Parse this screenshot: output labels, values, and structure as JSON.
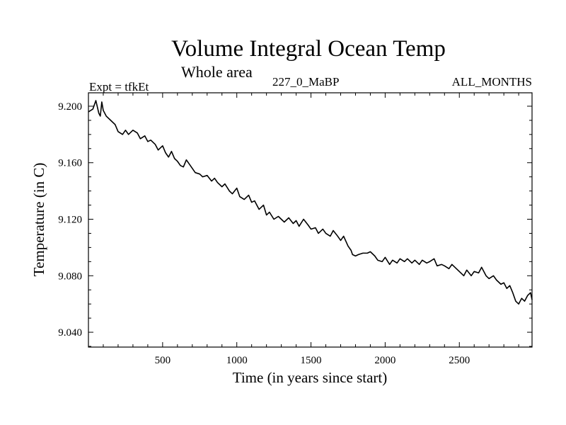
{
  "chart_data": {
    "type": "line",
    "title": "Volume Integral Ocean Temp",
    "subtitle": "Whole area",
    "annotations": {
      "left": "Expt = tfkEt",
      "center": "227_0_MaBP",
      "right": "ALL_MONTHS"
    },
    "xlabel": "Time (in years since start)",
    "ylabel": "Temperature (in C)",
    "xlim": [
      0,
      2990
    ],
    "ylim": [
      9.0295,
      9.2095
    ],
    "xticks": [
      500,
      1000,
      1500,
      2000,
      2500
    ],
    "xtick_labels": [
      "500",
      "1000",
      "1500",
      "2000",
      "2500"
    ],
    "yticks": [
      9.04,
      9.08,
      9.12,
      9.16,
      9.2
    ],
    "ytick_labels": [
      "9.040",
      "9.080",
      "9.120",
      "9.160",
      "9.200"
    ],
    "grid": false,
    "legend": "none",
    "line_color": "#000000",
    "series": [
      {
        "x": [
          0,
          30,
          50,
          70,
          80,
          90,
          100,
          120,
          150,
          180,
          200,
          230,
          250,
          270,
          300,
          330,
          350,
          380,
          400,
          420,
          450,
          470,
          500,
          520,
          540,
          560,
          580,
          600,
          620,
          640,
          660,
          680,
          700,
          720,
          750,
          770,
          800,
          830,
          850,
          870,
          900,
          920,
          950,
          970,
          1000,
          1020,
          1050,
          1080,
          1100,
          1120,
          1150,
          1180,
          1200,
          1220,
          1250,
          1280,
          1300,
          1320,
          1350,
          1380,
          1400,
          1420,
          1450,
          1480,
          1500,
          1530,
          1550,
          1580,
          1600,
          1630,
          1650,
          1680,
          1700,
          1720,
          1750,
          1770,
          1780,
          1800,
          1820,
          1850,
          1880,
          1900,
          1930,
          1950,
          1980,
          2000,
          2030,
          2050,
          2080,
          2100,
          2130,
          2150,
          2180,
          2200,
          2230,
          2250,
          2280,
          2300,
          2330,
          2350,
          2380,
          2400,
          2430,
          2450,
          2480,
          2500,
          2530,
          2550,
          2580,
          2600,
          2630,
          2650,
          2680,
          2700,
          2730,
          2750,
          2780,
          2800,
          2820,
          2840,
          2860,
          2880,
          2900,
          2920,
          2940,
          2960,
          2980,
          2990
        ],
        "y": [
          9.196,
          9.198,
          9.204,
          9.195,
          9.193,
          9.203,
          9.197,
          9.193,
          9.19,
          9.187,
          9.182,
          9.18,
          9.183,
          9.18,
          9.183,
          9.181,
          9.177,
          9.179,
          9.175,
          9.176,
          9.173,
          9.169,
          9.172,
          9.167,
          9.164,
          9.168,
          9.163,
          9.161,
          9.158,
          9.157,
          9.162,
          9.159,
          9.156,
          9.153,
          9.152,
          9.15,
          9.151,
          9.147,
          9.149,
          9.146,
          9.143,
          9.145,
          9.14,
          9.138,
          9.142,
          9.136,
          9.134,
          9.137,
          9.132,
          9.133,
          9.127,
          9.13,
          9.123,
          9.125,
          9.12,
          9.122,
          9.12,
          9.118,
          9.121,
          9.117,
          9.119,
          9.115,
          9.12,
          9.116,
          9.113,
          9.114,
          9.11,
          9.113,
          9.11,
          9.108,
          9.112,
          9.108,
          9.105,
          9.108,
          9.101,
          9.098,
          9.095,
          9.094,
          9.095,
          9.096,
          9.096,
          9.097,
          9.094,
          9.091,
          9.09,
          9.093,
          9.088,
          9.091,
          9.089,
          9.092,
          9.09,
          9.092,
          9.089,
          9.091,
          9.088,
          9.091,
          9.089,
          9.09,
          9.092,
          9.087,
          9.088,
          9.087,
          9.085,
          9.088,
          9.085,
          9.083,
          9.08,
          9.084,
          9.08,
          9.083,
          9.082,
          9.086,
          9.08,
          9.078,
          9.08,
          9.077,
          9.074,
          9.075,
          9.071,
          9.073,
          9.068,
          9.062,
          9.06,
          9.064,
          9.062,
          9.066,
          9.068,
          9.063
        ]
      }
    ]
  }
}
